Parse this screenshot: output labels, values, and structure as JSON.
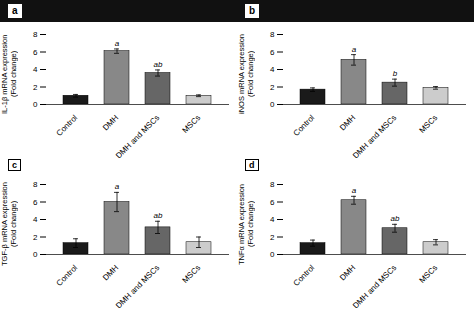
{
  "chart_data": [
    {
      "type": "bar",
      "title": "a",
      "ylabel": "IL-1β mRNA expression\n(Fold change)",
      "categories": [
        "Control",
        "DMH",
        "DMH and MSCs",
        "MSCs"
      ],
      "values": [
        1.0,
        6.1,
        3.6,
        1.0
      ],
      "errors": [
        0.15,
        0.25,
        0.35,
        0.1
      ],
      "colors": [
        "#1a1a1a",
        "#888888",
        "#666666",
        "#cccccc"
      ],
      "ylim": [
        0,
        8
      ],
      "yticks": [
        0,
        2,
        4,
        6,
        8
      ],
      "sig_labels": [
        null,
        "a",
        "ab",
        null
      ]
    },
    {
      "type": "bar",
      "title": "b",
      "ylabel": "iNOS mRNA expression\n(Fold change)",
      "categories": [
        "Control",
        "DMH",
        "DMH and MSCs",
        "MSCs"
      ],
      "values": [
        1.7,
        5.1,
        2.5,
        1.9
      ],
      "errors": [
        0.2,
        0.6,
        0.4,
        0.15
      ],
      "colors": [
        "#1a1a1a",
        "#888888",
        "#666666",
        "#cccccc"
      ],
      "ylim": [
        0,
        8
      ],
      "yticks": [
        0,
        2,
        4,
        6,
        8
      ],
      "sig_labels": [
        null,
        "a",
        "b",
        null
      ]
    },
    {
      "type": "bar",
      "title": "c",
      "ylabel": "TGF-β mRNA expression\n(Fold change)",
      "categories": [
        "Control",
        "DMH",
        "DMH and MSCs",
        "MSCs"
      ],
      "values": [
        1.3,
        6.0,
        3.1,
        1.4
      ],
      "errors": [
        0.5,
        1.1,
        0.7,
        0.6
      ],
      "colors": [
        "#1a1a1a",
        "#888888",
        "#666666",
        "#cccccc"
      ],
      "ylim": [
        0,
        8
      ],
      "yticks": [
        0,
        2,
        4,
        6,
        8
      ],
      "sig_labels": [
        null,
        "a",
        "ab",
        null
      ]
    },
    {
      "type": "bar",
      "title": "d",
      "ylabel": "TNFα mRNA expression\n(Fold change)",
      "categories": [
        "Control",
        "DMH",
        "DMH and MSCs",
        "MSCs"
      ],
      "values": [
        1.3,
        6.2,
        3.0,
        1.4
      ],
      "errors": [
        0.35,
        0.45,
        0.45,
        0.3
      ],
      "colors": [
        "#1a1a1a",
        "#888888",
        "#666666",
        "#cccccc"
      ],
      "ylim": [
        0,
        8
      ],
      "yticks": [
        0,
        2,
        4,
        6,
        8
      ],
      "sig_labels": [
        null,
        "a",
        "ab",
        null
      ]
    }
  ]
}
